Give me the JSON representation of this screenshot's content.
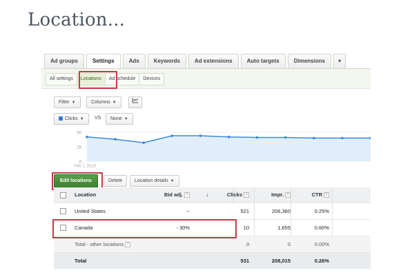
{
  "slide": {
    "title": "Location..."
  },
  "tabs": [
    "Ad groups",
    "Settings",
    "Ads",
    "Keywords",
    "Ad extensions",
    "Auto targets",
    "Dimensions",
    "▾"
  ],
  "subtabs": [
    "All settings",
    "Locations",
    "Ad schedule",
    "Devices"
  ],
  "toolbar": {
    "filter": "Filter",
    "columns": "Columns",
    "chart_icon": "chart-icon"
  },
  "metric": {
    "primary": "Clicks",
    "vs": "VS",
    "secondary": "None",
    "primary_color": "#3a7bd5"
  },
  "chart_data": {
    "type": "area",
    "y_ticks": [
      "50",
      "25",
      "0"
    ],
    "ylim": [
      0,
      50
    ],
    "x_label": "Feb 1, 2013",
    "values": [
      42,
      38,
      32,
      44,
      44,
      42,
      41,
      41,
      40,
      40,
      40
    ],
    "line_color": "#3a8ad8",
    "fill_color": "#e2eef9"
  },
  "actions": {
    "edit": "Edit locations",
    "delete": "Delete",
    "details": "Location details"
  },
  "table": {
    "headers": {
      "location": "Location",
      "bid": "Bid adj.",
      "clicks": "Clicks",
      "impr": "Impr.",
      "ctr": "CTR"
    },
    "rows": [
      {
        "location": "United States",
        "bid": "--",
        "clicks": "521",
        "impr": "206,360",
        "ctr": "0.25%"
      },
      {
        "location": "Canada",
        "bid": "- 30%",
        "clicks": "10",
        "impr": "1,655",
        "ctr": "0.60%"
      }
    ],
    "other": {
      "location": "Total - other locations",
      "clicks": "0",
      "impr": "0",
      "ctr": "0.00%"
    },
    "total": {
      "location": "Total",
      "clicks": "531",
      "impr": "208,015",
      "ctr": "0.26%"
    }
  },
  "highlight_color": "#c23a45"
}
